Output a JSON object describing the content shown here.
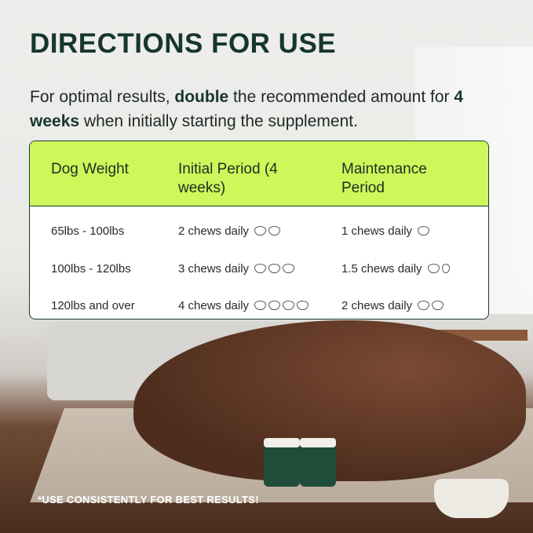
{
  "title": "DIRECTIONS FOR USE",
  "intro": {
    "pre": "For optimal results, ",
    "bold1": "double",
    "mid": " the recommended amount for ",
    "bold2": "4 weeks",
    "post": " when initially starting the supplement."
  },
  "table": {
    "headers": [
      "Dog Weight",
      "Initial Period (4 weeks)",
      "Maintenance Period"
    ],
    "rows": [
      {
        "weight": "65lbs - 100lbs",
        "initial": "2 chews daily",
        "initial_chews": 2,
        "maintenance": "1 chews daily",
        "maintenance_chews": 1
      },
      {
        "weight": "100lbs - 120lbs",
        "initial": "3 chews daily",
        "initial_chews": 3,
        "maintenance": "1.5 chews daily",
        "maintenance_chews": 1.5
      },
      {
        "weight": "120lbs and over",
        "initial": "4 chews daily",
        "initial_chews": 4,
        "maintenance": "2 chews daily",
        "maintenance_chews": 2
      }
    ],
    "header_color": "#cdf75a"
  },
  "footer": "*USE CONSISTENTLY FOR BEST RESULTS!",
  "colors": {
    "title": "#16372b",
    "accent": "#cdf75a"
  }
}
